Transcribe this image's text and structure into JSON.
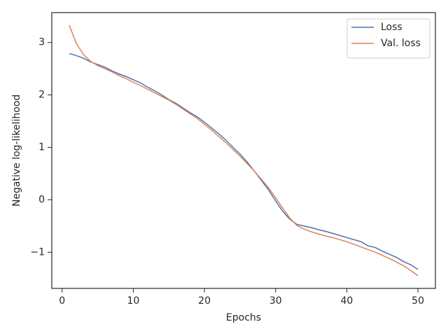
{
  "chart_data": {
    "type": "line",
    "x_label": "Epochs",
    "y_label": "Negative log-likelihood",
    "x": [
      1,
      2,
      3,
      4,
      5,
      6,
      7,
      8,
      9,
      10,
      11,
      12,
      13,
      14,
      15,
      16,
      17,
      18,
      19,
      20,
      21,
      22,
      23,
      24,
      25,
      26,
      27,
      28,
      29,
      30,
      31,
      32,
      33,
      34,
      35,
      36,
      37,
      38,
      39,
      40,
      41,
      42,
      43,
      44,
      45,
      46,
      47,
      48,
      49,
      50
    ],
    "series": [
      {
        "name": "Loss",
        "color": "#4c72b0",
        "values": [
          2.79,
          2.75,
          2.7,
          2.63,
          2.58,
          2.53,
          2.46,
          2.4,
          2.35,
          2.29,
          2.23,
          2.15,
          2.08,
          2.0,
          1.91,
          1.84,
          1.75,
          1.66,
          1.58,
          1.48,
          1.37,
          1.26,
          1.14,
          1.0,
          0.87,
          0.72,
          0.55,
          0.37,
          0.19,
          -0.02,
          -0.22,
          -0.37,
          -0.47,
          -0.5,
          -0.53,
          -0.57,
          -0.6,
          -0.64,
          -0.68,
          -0.72,
          -0.76,
          -0.8,
          -0.88,
          -0.91,
          -0.98,
          -1.04,
          -1.1,
          -1.18,
          -1.24,
          -1.33
        ]
      },
      {
        "name": "Val. loss",
        "color": "#dd8452",
        "values": [
          3.33,
          2.98,
          2.77,
          2.64,
          2.56,
          2.5,
          2.44,
          2.37,
          2.31,
          2.24,
          2.18,
          2.11,
          2.04,
          1.97,
          1.9,
          1.82,
          1.73,
          1.64,
          1.55,
          1.44,
          1.33,
          1.21,
          1.09,
          0.96,
          0.83,
          0.69,
          0.55,
          0.39,
          0.23,
          0.04,
          -0.16,
          -0.35,
          -0.49,
          -0.56,
          -0.61,
          -0.65,
          -0.69,
          -0.72,
          -0.76,
          -0.8,
          -0.85,
          -0.9,
          -0.95,
          -1.0,
          -1.06,
          -1.12,
          -1.19,
          -1.26,
          -1.35,
          -1.45
        ]
      }
    ],
    "xlim": [
      -1.45,
      52.45
    ],
    "ylim": [
      -1.69,
      3.57
    ],
    "xticks": [
      0,
      10,
      20,
      30,
      40,
      50
    ],
    "yticks": [
      {
        "value": -1,
        "label": "−1"
      },
      0,
      1,
      2,
      3
    ],
    "grid": false,
    "legend": "upper right"
  }
}
